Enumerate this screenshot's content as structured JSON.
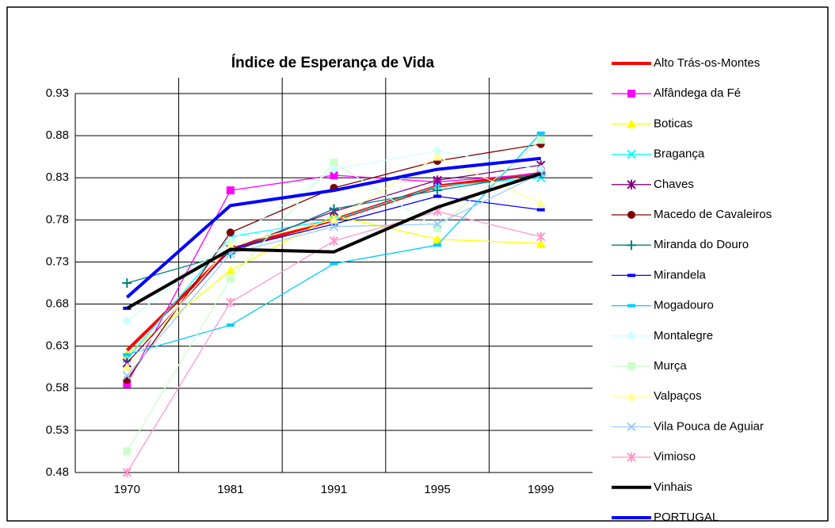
{
  "chart_data": {
    "type": "line",
    "title": "Índice de Esperança de Vida",
    "categories": [
      "1970",
      "1981",
      "1991",
      "1995",
      "1999"
    ],
    "ylim": [
      0.48,
      0.93
    ],
    "yticks": [
      0.48,
      0.53,
      0.58,
      0.63,
      0.68,
      0.73,
      0.78,
      0.83,
      0.88,
      0.93
    ],
    "grid": true,
    "legend": "right",
    "series": [
      {
        "name": "Alto Trás-os-Montes",
        "color": "#ff0000",
        "width": 4,
        "marker": "none",
        "values": [
          0.625,
          0.745,
          0.78,
          0.82,
          0.835
        ]
      },
      {
        "name": "Alfândega da Fé",
        "color": "#ff00ff",
        "width": 1.3,
        "marker": "square",
        "values": [
          0.585,
          0.815,
          0.833,
          0.825,
          0.835
        ]
      },
      {
        "name": "Boticas",
        "color": "#ffff00",
        "width": 1.3,
        "marker": "triangle",
        "values": [
          0.62,
          0.72,
          0.785,
          0.757,
          0.752
        ]
      },
      {
        "name": "Bragança",
        "color": "#00ffff",
        "width": 1.3,
        "marker": "x",
        "values": [
          0.615,
          0.76,
          0.78,
          0.82,
          0.83
        ]
      },
      {
        "name": "Chaves",
        "color": "#800080",
        "width": 1.3,
        "marker": "star",
        "values": [
          0.61,
          0.745,
          0.79,
          0.827,
          0.845
        ]
      },
      {
        "name": "Macedo de Cavaleiros",
        "color": "#800000",
        "width": 1.3,
        "marker": "circle",
        "values": [
          0.59,
          0.765,
          0.818,
          0.85,
          0.87
        ]
      },
      {
        "name": "Miranda do Douro",
        "color": "#008080",
        "width": 1.3,
        "marker": "plus",
        "values": [
          0.705,
          0.74,
          0.793,
          0.815,
          0.835
        ]
      },
      {
        "name": "Mirandela",
        "color": "#0000ff",
        "width": 1.3,
        "marker": "dash",
        "values": [
          0.675,
          0.745,
          0.775,
          0.808,
          0.792
        ]
      },
      {
        "name": "Mogadouro",
        "color": "#00ccff",
        "width": 1.3,
        "marker": "dash",
        "values": [
          0.62,
          0.655,
          0.728,
          0.75,
          0.883
        ]
      },
      {
        "name": "Montalegre",
        "color": "#ccffff",
        "width": 1.3,
        "marker": "diamond",
        "values": [
          0.66,
          0.755,
          0.84,
          0.862,
          0.84
        ]
      },
      {
        "name": "Murça",
        "color": "#ccffcc",
        "width": 1.3,
        "marker": "square",
        "values": [
          0.505,
          0.71,
          0.848,
          0.77,
          0.875
        ]
      },
      {
        "name": "Valpaços",
        "color": "#ffff99",
        "width": 1.3,
        "marker": "triangle",
        "values": [
          0.605,
          0.75,
          0.78,
          0.855,
          0.8
        ]
      },
      {
        "name": "Vila Pouca de Aguiar",
        "color": "#99ccff",
        "width": 1.3,
        "marker": "x",
        "values": [
          0.595,
          0.74,
          0.772,
          0.775,
          0.835
        ]
      },
      {
        "name": "Vimioso",
        "color": "#ff99cc",
        "width": 1.3,
        "marker": "star",
        "values": [
          0.48,
          0.682,
          0.755,
          0.79,
          0.76
        ]
      },
      {
        "name": "Vinhais",
        "color": "#000000",
        "width": 4,
        "marker": "none",
        "values": [
          0.675,
          0.745,
          0.742,
          0.795,
          0.835
        ]
      },
      {
        "name": "PORTUGAL",
        "color": "#0000ff",
        "width": 4,
        "marker": "none",
        "values": [
          0.688,
          0.797,
          0.815,
          0.84,
          0.853
        ]
      }
    ]
  }
}
